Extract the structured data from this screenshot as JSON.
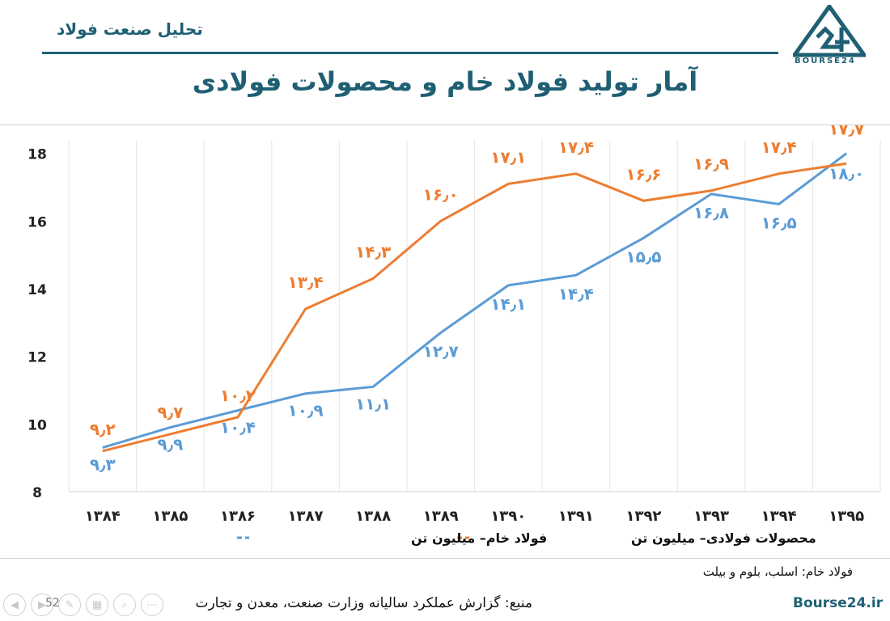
{
  "header": {
    "label": "تحلیل صنعت فولاد",
    "logo_text": "BOURSE24"
  },
  "title": "آمار تولید فولاد خام و محصولات فولادی",
  "colors": {
    "crude": "#5b9bd5",
    "products": "#ed7d31",
    "brand": "#1f5f73"
  },
  "chart_data": {
    "type": "line",
    "categories": [
      "۱۳۸۴",
      "۱۳۸۵",
      "۱۳۸۶",
      "۱۳۸۷",
      "۱۳۸۸",
      "۱۳۸۹",
      "۱۳۹۰",
      "۱۳۹۱",
      "۱۳۹۲",
      "۱۳۹۳",
      "۱۳۹۴",
      "۱۳۹۵"
    ],
    "ylim": [
      8,
      18.4
    ],
    "yticks": [
      8,
      10,
      12,
      14,
      16,
      18
    ],
    "series": [
      {
        "name": "فولاد خام– میلیون تن",
        "color": "#5b9bd5",
        "values": [
          9.3,
          9.9,
          10.4,
          10.9,
          11.1,
          12.7,
          14.1,
          14.4,
          15.5,
          16.8,
          16.5,
          18.0
        ],
        "labels": [
          "۹٫۳",
          "۹٫۹",
          "۱۰٫۴",
          "۱۰٫۹",
          "۱۱٫۱",
          "۱۲٫۷",
          "۱۴٫۱",
          "۱۴٫۴",
          "۱۵٫۵",
          "۱۶٫۸",
          "۱۶٫۵",
          "۱۸٫۰"
        ]
      },
      {
        "name": "محصولات فولادی– میلیون تن",
        "color": "#ed7d31",
        "values": [
          9.2,
          9.7,
          10.2,
          13.4,
          14.3,
          16.0,
          17.1,
          17.4,
          16.6,
          16.9,
          17.4,
          17.7
        ],
        "labels": [
          "۹٫۲",
          "۹٫۷",
          "۱۰٫۲",
          "۱۳٫۴",
          "۱۴٫۳",
          "۱۶٫۰",
          "۱۷٫۱",
          "۱۷٫۴",
          "۱۶٫۶",
          "۱۶٫۹",
          "۱۷٫۴",
          "۱۷٫۷"
        ]
      }
    ]
  },
  "footnote": "فولاد خام: اسلب، بلوم و بیلت",
  "source": "منبع: گزارش عملکرد سالیانه وزارت صنعت، معدن و تجارت",
  "site": "Bourse24.ir",
  "page_number": "52",
  "nav_icons": [
    "prev-icon",
    "next-icon",
    "pen-icon",
    "slides-icon",
    "zoom-icon",
    "more-icon"
  ]
}
